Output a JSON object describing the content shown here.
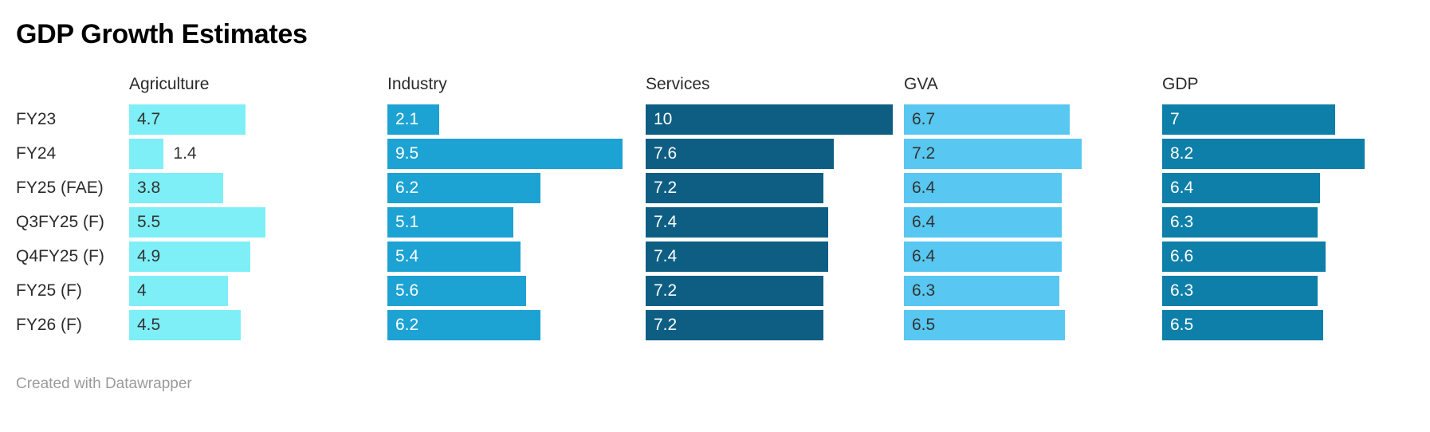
{
  "chart": {
    "title": "GDP Growth Estimates",
    "attribution": "Created with Datawrapper"
  },
  "chart_data": {
    "type": "bar",
    "orientation": "horizontal",
    "title": "GDP Growth Estimates",
    "categories": [
      "FY23",
      "FY24",
      "FY25 (FAE)",
      "Q3FY25 (F)",
      "Q4FY25 (F)",
      "FY25 (F)",
      "FY26 (F)"
    ],
    "series": [
      {
        "name": "Agriculture",
        "color": "#7EEFF7",
        "label_color": "#333333",
        "values": [
          4.7,
          1.4,
          3.8,
          5.5,
          4.9,
          4,
          4.5
        ]
      },
      {
        "name": "Industry",
        "color": "#1CA2D3",
        "label_color": "#ffffff",
        "values": [
          2.1,
          9.5,
          6.2,
          5.1,
          5.4,
          5.6,
          6.2
        ]
      },
      {
        "name": "Services",
        "color": "#0E5E83",
        "label_color": "#ffffff",
        "values": [
          10,
          7.6,
          7.2,
          7.4,
          7.4,
          7.2,
          7.2
        ]
      },
      {
        "name": "GVA",
        "color": "#58C7F1",
        "label_color": "#333333",
        "values": [
          6.7,
          7.2,
          6.4,
          6.4,
          6.4,
          6.3,
          6.5
        ]
      },
      {
        "name": "GDP",
        "color": "#0E7FA8",
        "label_color": "#ffffff",
        "values": [
          7,
          8.2,
          6.4,
          6.3,
          6.6,
          6.3,
          6.5
        ]
      }
    ],
    "xlim": [
      0,
      10.45
    ],
    "value_labels": "inside-start",
    "outside_label_color": "#333333",
    "legend": false,
    "grid": false,
    "axes_hidden": true
  }
}
